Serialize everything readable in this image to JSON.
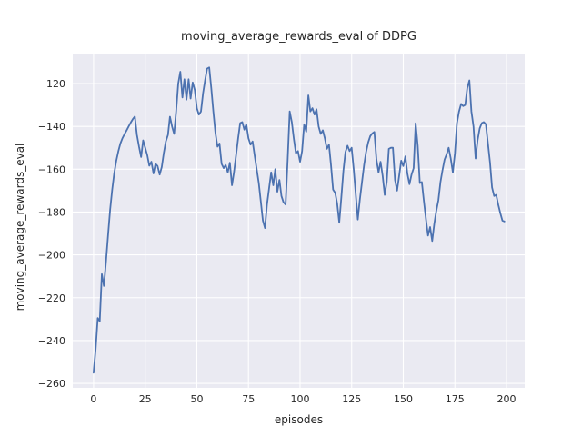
{
  "figure": {
    "background": "#ffffff"
  },
  "chart_data": {
    "type": "line",
    "title": "moving_average_rewards_eval of DDPG",
    "xlabel": "episodes",
    "ylabel": "moving_average_rewards_eval",
    "xlim": [
      -10.1,
      208.8
    ],
    "ylim": [
      -262.1,
      -106.0
    ],
    "grid": true,
    "legend": "none",
    "x_ticks": {
      "values": [
        0,
        25,
        50,
        75,
        100,
        125,
        150,
        175,
        200
      ],
      "labels": [
        "0",
        "25",
        "50",
        "75",
        "100",
        "125",
        "150",
        "175",
        "200"
      ]
    },
    "y_ticks": {
      "values": [
        -260,
        -240,
        -220,
        -200,
        -180,
        -160,
        -140,
        -120
      ],
      "labels": [
        "−260",
        "−240",
        "−220",
        "−200",
        "−180",
        "−160",
        "−140",
        "−120"
      ]
    },
    "style": {
      "axes_background": "#eaeaf2",
      "grid_color": "#ffffff",
      "text_color": "#262626",
      "line_color": "#4c72b0",
      "line_width": 1.8
    },
    "series": [
      {
        "name": "moving_average_rewards_eval",
        "color": "#4c72b0",
        "x_start": 0,
        "x_step": 1,
        "values": [
          -255.0,
          -244.0,
          -229.5,
          -231.0,
          -209.0,
          -214.5,
          -203.0,
          -191.0,
          -179.0,
          -169.5,
          -162.0,
          -156.0,
          -151.5,
          -148.0,
          -145.5,
          -143.6,
          -141.8,
          -140.0,
          -138.2,
          -136.6,
          -135.4,
          -144.0,
          -149.5,
          -154.3,
          -146.5,
          -150.0,
          -153.5,
          -158.4,
          -156.5,
          -162.0,
          -157.5,
          -158.5,
          -162.5,
          -159.0,
          -152.5,
          -147.0,
          -144.0,
          -135.5,
          -140.0,
          -143.5,
          -133.0,
          -120.0,
          -114.5,
          -126.5,
          -118.0,
          -127.5,
          -118.0,
          -127.0,
          -119.5,
          -123.0,
          -131.5,
          -134.5,
          -133.0,
          -124.5,
          -118.5,
          -113.0,
          -112.5,
          -122.0,
          -133.0,
          -143.0,
          -149.5,
          -148.0,
          -157.5,
          -159.5,
          -158.0,
          -161.5,
          -157.0,
          -167.5,
          -161.5,
          -153.5,
          -145.5,
          -138.5,
          -138.0,
          -141.5,
          -139.0,
          -145.5,
          -148.5,
          -147.0,
          -153.5,
          -160.0,
          -166.5,
          -175.0,
          -184.0,
          -187.5,
          -176.5,
          -169.0,
          -161.5,
          -167.5,
          -160.0,
          -170.5,
          -165.0,
          -172.5,
          -175.5,
          -176.5,
          -155.0,
          -133.0,
          -138.0,
          -146.0,
          -152.5,
          -151.5,
          -156.5,
          -151.5,
          -139.0,
          -142.5,
          -125.5,
          -133.0,
          -131.5,
          -134.5,
          -132.0,
          -140.0,
          -143.5,
          -141.8,
          -145.5,
          -150.5,
          -148.5,
          -158.0,
          -169.5,
          -171.0,
          -176.0,
          -185.0,
          -173.0,
          -160.5,
          -152.0,
          -149.0,
          -151.5,
          -150.0,
          -160.0,
          -172.0,
          -183.5,
          -174.0,
          -166.0,
          -158.0,
          -152.0,
          -147.5,
          -144.5,
          -143.3,
          -142.6,
          -155.5,
          -161.5,
          -156.5,
          -163.0,
          -172.0,
          -166.0,
          -150.5,
          -150.0,
          -150.0,
          -165.0,
          -170.0,
          -163.0,
          -156.0,
          -158.5,
          -154.0,
          -162.0,
          -167.0,
          -162.5,
          -159.5,
          -138.5,
          -149.0,
          -166.5,
          -166.0,
          -175.0,
          -183.5,
          -191.0,
          -187.0,
          -193.5,
          -185.5,
          -179.5,
          -174.5,
          -166.0,
          -160.5,
          -155.5,
          -153.0,
          -150.0,
          -155.0,
          -161.5,
          -152.5,
          -138.5,
          -133.0,
          -129.5,
          -130.5,
          -130.0,
          -122.0,
          -118.5,
          -133.0,
          -140.0,
          -155.0,
          -146.5,
          -141.0,
          -138.5,
          -138.0,
          -139.0,
          -148.0,
          -157.0,
          -168.5,
          -172.5,
          -172.0,
          -176.5,
          -180.5,
          -184.0,
          -184.4
        ]
      }
    ]
  }
}
